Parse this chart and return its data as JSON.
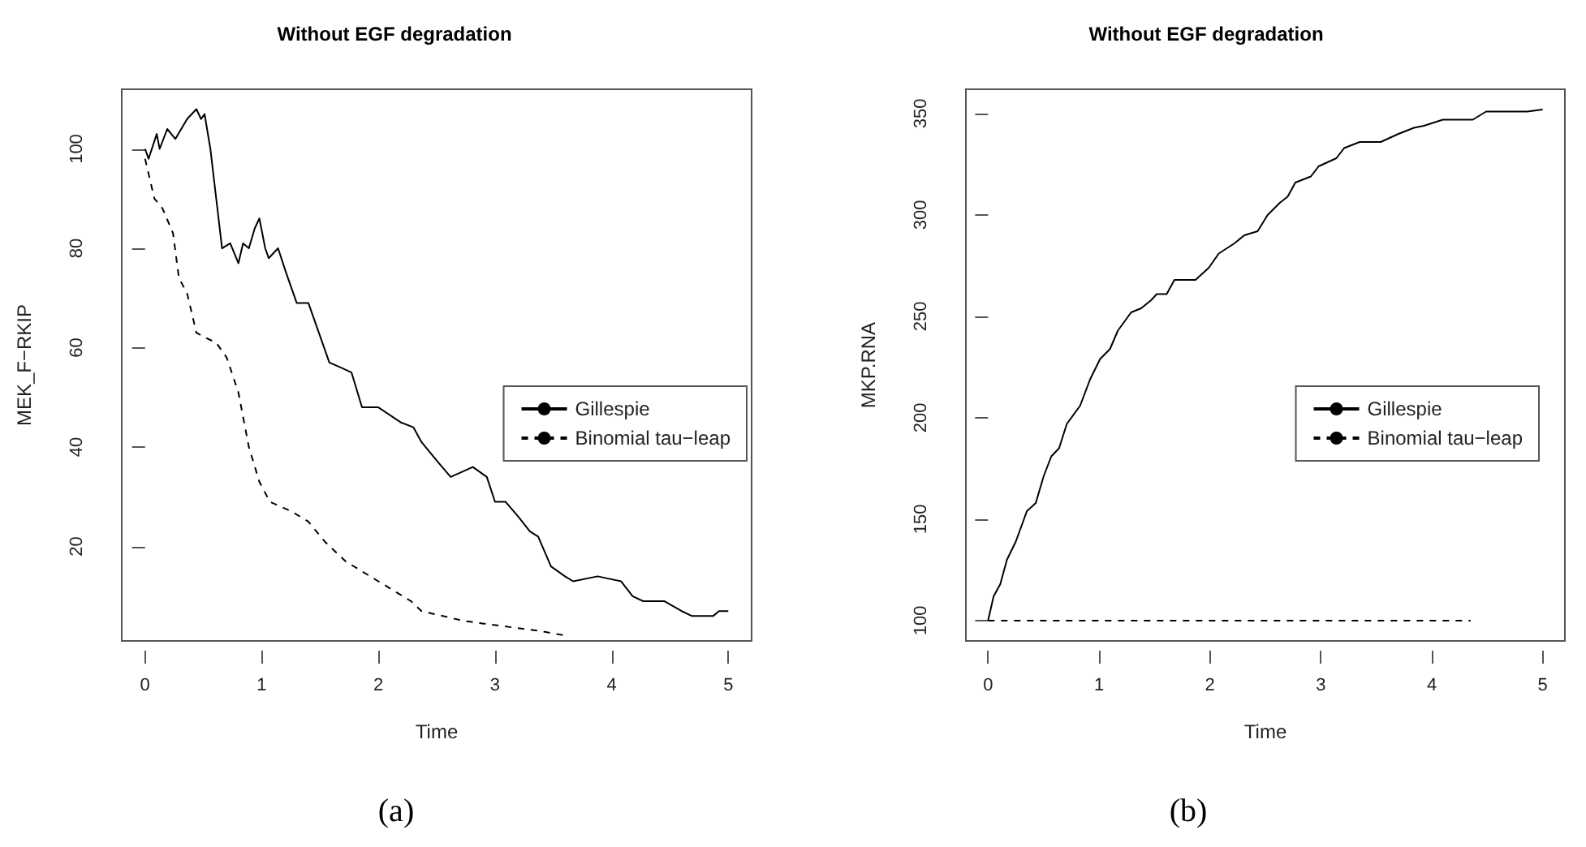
{
  "chart_data": [
    {
      "type": "line",
      "title": "Without EGF degradation",
      "xlabel": "Time",
      "ylabel": "MEK_F−RKIP",
      "annotations": [
        "(a)"
      ],
      "xlim": [
        -0.2,
        5.2
      ],
      "xticks": [
        0,
        1,
        2,
        3,
        4,
        5
      ],
      "ylim": [
        1,
        112
      ],
      "yticks": [
        20,
        40,
        60,
        80,
        100
      ],
      "grid": false,
      "legend": "right",
      "marker": "none",
      "series": [
        {
          "name": "Gillespie",
          "color": "#000000",
          "line_style": "solid",
          "x": [
            0,
            0.03,
            0.1,
            0.125,
            0.19,
            0.26,
            0.36,
            0.44,
            0.48,
            0.51,
            0.56,
            0.61,
            0.66,
            0.73,
            0.8,
            0.84,
            0.89,
            0.94,
            0.98,
            1.03,
            1.06,
            1.14,
            1.21,
            1.3,
            1.4,
            1.49,
            1.58,
            1.68,
            1.77,
            1.86,
            2.0,
            2.19,
            2.3,
            2.37,
            2.51,
            2.62,
            2.81,
            2.93,
            3.0,
            3.09,
            3.2,
            3.3,
            3.37,
            3.48,
            3.6,
            3.67,
            3.88,
            4.08,
            4.18,
            4.27,
            4.45,
            4.6,
            4.69,
            4.87,
            4.92,
            5.0
          ],
          "values": [
            100,
            98,
            103,
            100,
            104,
            102,
            106,
            108,
            106,
            107,
            100,
            90,
            80,
            81,
            77,
            81,
            80,
            84,
            86,
            80,
            78,
            80,
            75,
            69,
            69,
            63,
            57,
            56,
            55,
            48,
            48,
            45,
            44,
            41,
            37,
            34,
            36,
            34,
            29,
            29,
            26,
            23,
            22,
            16,
            14,
            13,
            14,
            13,
            10,
            9,
            9,
            7,
            6,
            6,
            7,
            7
          ]
        },
        {
          "name": "Binomial tau−leap",
          "color": "#000000",
          "line_style": "dashed",
          "x": [
            0,
            0.08,
            0.15,
            0.24,
            0.29,
            0.36,
            0.44,
            0.52,
            0.61,
            0.7,
            0.8,
            0.89,
            0.98,
            1.07,
            1.26,
            1.4,
            1.54,
            1.72,
            2.0,
            2.28,
            2.37,
            2.74,
            3.06,
            3.39,
            3.62
          ],
          "values": [
            98,
            90,
            88,
            83,
            74,
            71,
            63,
            62,
            61,
            58,
            51,
            40,
            33,
            29,
            27,
            25,
            21,
            17,
            13,
            9,
            7,
            5,
            4,
            3,
            2
          ]
        }
      ]
    },
    {
      "type": "line",
      "title": "Without EGF degradation",
      "xlabel": "Time",
      "ylabel": "MKP.RNA",
      "annotations": [
        "(b)"
      ],
      "xlim": [
        -0.2,
        5.2
      ],
      "xticks": [
        0,
        1,
        2,
        3,
        4,
        5
      ],
      "ylim": [
        90,
        362
      ],
      "yticks": [
        100,
        150,
        200,
        250,
        300,
        350
      ],
      "grid": false,
      "legend": "right",
      "marker": "none",
      "series": [
        {
          "name": "Gillespie",
          "color": "#000000",
          "line_style": "solid",
          "x": [
            0,
            0.05,
            0.11,
            0.17,
            0.25,
            0.35,
            0.43,
            0.5,
            0.57,
            0.64,
            0.71,
            0.83,
            0.92,
            1.01,
            1.1,
            1.17,
            1.29,
            1.38,
            1.47,
            1.52,
            1.61,
            1.68,
            1.87,
            1.99,
            2.08,
            2.22,
            2.31,
            2.43,
            2.52,
            2.63,
            2.7,
            2.77,
            2.91,
            2.98,
            3.14,
            3.21,
            3.35,
            3.54,
            3.7,
            3.84,
            3.93,
            4.1,
            4.37,
            4.49,
            4.86,
            5.0
          ],
          "values": [
            100,
            112,
            118,
            130,
            139,
            154,
            158,
            171,
            181,
            185,
            197,
            206,
            219,
            229,
            234,
            243,
            252,
            254,
            258,
            261,
            261,
            268,
            268,
            274,
            281,
            286,
            290,
            292,
            300,
            306,
            309,
            316,
            319,
            324,
            328,
            333,
            336,
            336,
            340,
            343,
            344,
            347,
            347,
            351,
            351,
            352
          ]
        },
        {
          "name": "Binomial tau−leap",
          "color": "#000000",
          "line_style": "dashed",
          "x": [
            0,
            4.35
          ],
          "values": [
            100,
            100
          ]
        }
      ]
    }
  ]
}
